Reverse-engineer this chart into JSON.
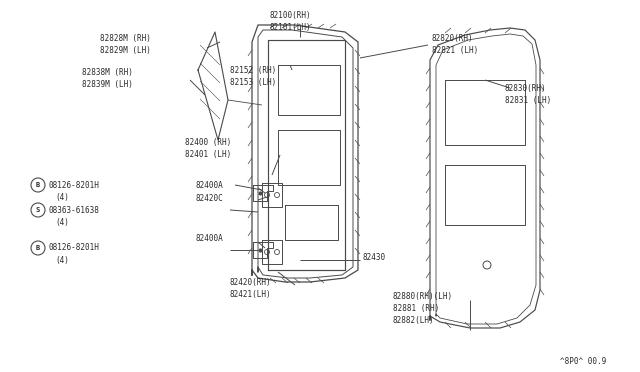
{
  "bg_color": "#ffffff",
  "watermark": "^8P0^ 00.9",
  "line_color": "#4a4a4a",
  "text_color": "#2a2a2a",
  "font_size": 5.5,
  "labels": {
    "82828M_RH": "82828M (RH)",
    "82829M_LH": "82829M (LH)",
    "82838M_RH": "82838M (RH)",
    "82839M_LH": "82839M (LH)",
    "82100_RH": "82100(RH)",
    "82101_LH": "82101(LH)",
    "82152_RH": "82152 (RH)",
    "82153_LH": "82153 (LH)",
    "82400_RH": "82400 (RH)",
    "82401_LH": "82401 (LH)",
    "82400A": "82400A",
    "82420C": "82420C",
    "82430": "82430",
    "82420_RH": "82420(RH)",
    "82421_LH": "82421(LH)",
    "82820_RH": "82820(RH)",
    "82821_LH": "82821 (LH)",
    "82830_RH": "82830(RH)",
    "82831_LH": "82831 (LH)",
    "82880": "82880(RH)(LH)",
    "82881": "82881 (RH)",
    "82882": "82882(LH)",
    "bolt1": "08126-8201H",
    "bolt2": "08363-61638",
    "b4_1": "(4)",
    "b4_2": "(4)",
    "b4_3": "(4)"
  }
}
